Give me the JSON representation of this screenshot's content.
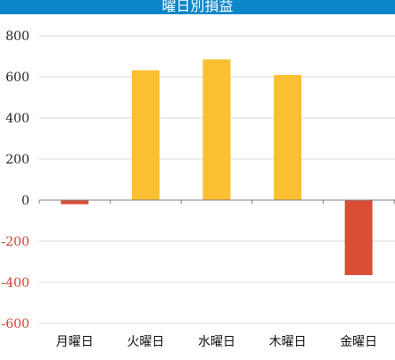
{
  "chart_data": {
    "type": "bar",
    "title": "曜日別損益",
    "xlabel": "",
    "ylabel": "",
    "categories": [
      "月曜日",
      "火曜日",
      "水曜日",
      "木曜日",
      "金曜日"
    ],
    "values": [
      -20,
      632,
      685,
      609,
      -365
    ],
    "ylim": [
      -600,
      800
    ],
    "yticks": [
      800,
      600,
      400,
      200,
      0,
      -200,
      -400,
      -600
    ],
    "grid": true,
    "colors": {
      "positive": "#fbbf32",
      "negative": "#d84e37",
      "negative_tick_label": "#d83b2b",
      "title_bar": "#0b86c8",
      "grid": "#d9d9d9",
      "axis": "#808080"
    }
  }
}
